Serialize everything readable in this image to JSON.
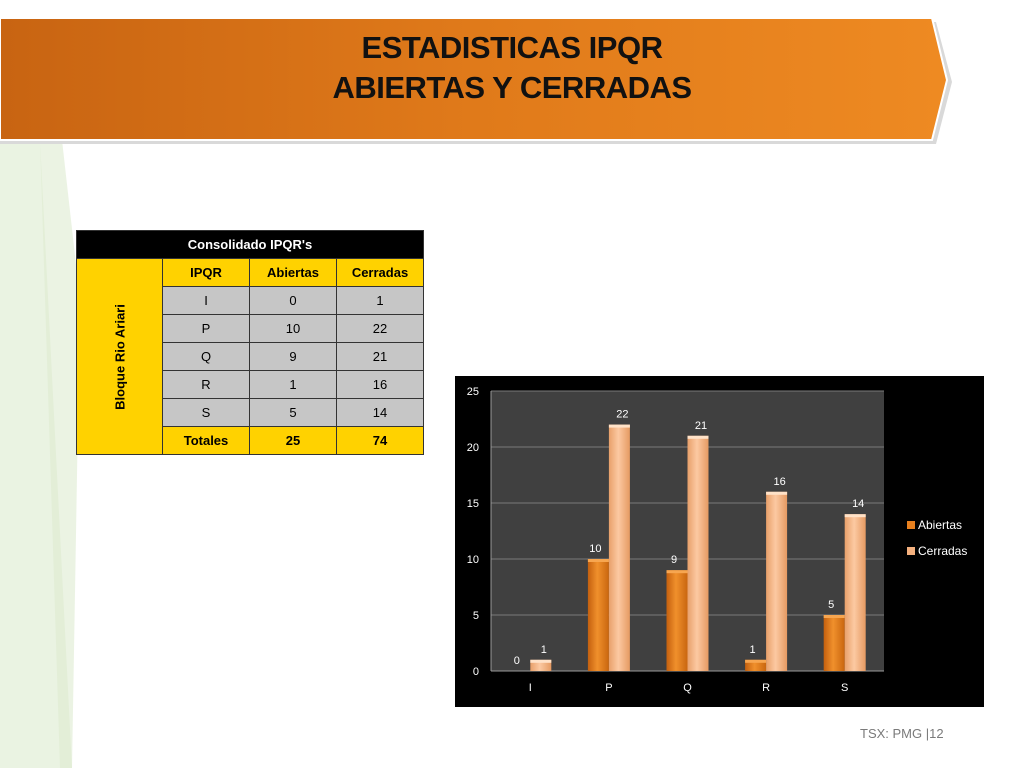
{
  "slide": {
    "title_line1": "ESTADISTICAS IPQR",
    "title_line2": "ABIERTAS Y CERRADAS",
    "footer": "TSX: PMG  |12"
  },
  "table": {
    "header": "Consolidado IPQR's",
    "group_label": "Bloque Rio Ariari",
    "columns": [
      "IPQR",
      "Abiertas",
      "Cerradas"
    ],
    "rows": [
      [
        "I",
        "0",
        "1"
      ],
      [
        "P",
        "10",
        "22"
      ],
      [
        "Q",
        "9",
        "21"
      ],
      [
        "R",
        "1",
        "16"
      ],
      [
        "S",
        "5",
        "14"
      ]
    ],
    "totals": [
      "Totales",
      "25",
      "74"
    ]
  },
  "colors": {
    "banner": "#E07A1A",
    "abiertas": "#E8801E",
    "cerradas": "#F4B07E",
    "plot_bg": "#404040",
    "table_yellow": "#FFD200",
    "table_gray": "#C6C6C6"
  },
  "chart_data": {
    "type": "bar",
    "categories": [
      "I",
      "P",
      "Q",
      "R",
      "S"
    ],
    "series": [
      {
        "name": "Abiertas",
        "values": [
          0,
          10,
          9,
          1,
          5
        ]
      },
      {
        "name": "Cerradas",
        "values": [
          1,
          22,
          21,
          16,
          14
        ]
      }
    ],
    "ylim": [
      0,
      25
    ],
    "yticks": [
      "0",
      "5",
      "10",
      "15",
      "20",
      "25"
    ],
    "grid": true,
    "legend_position": "right",
    "title": "",
    "xlabel": "",
    "ylabel": ""
  }
}
